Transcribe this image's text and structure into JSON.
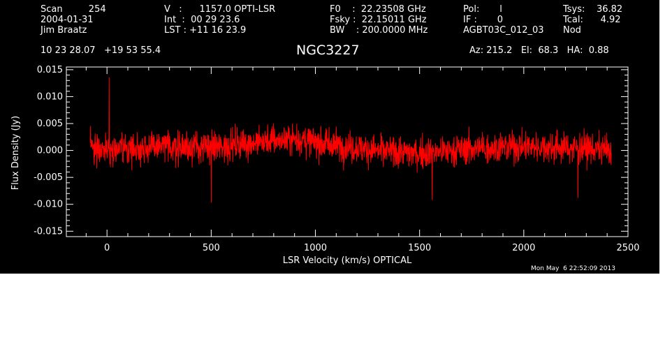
{
  "header": {
    "col1": [
      "Scan         254",
      "2004-01-31",
      "Jim Braatz"
    ],
    "col2": [
      "V   :      1157.0 OPTI-LSR",
      "Int  :  00 29 23.6",
      "LST : +11 16 23.9"
    ],
    "col3": [
      "F0    :  22.23508 GHz",
      "Fsky :  22.15011 GHz",
      "BW    : 200.0000 MHz"
    ],
    "col4": [
      "Pol:       l",
      "IF :       0",
      "AGBT03C_012_03"
    ],
    "col5": [
      "Tsys:    36.82",
      "Tcal:      4.92",
      "Nod"
    ],
    "coords": "10 23 28.07   +19 53 55.4",
    "source": "NGC3227",
    "azel": "Az: 215.2   El:  68.3   HA:  0.88"
  },
  "timestamp": "Mon May  6 22:52:09 2013",
  "colors": {
    "background": "#000000",
    "axes": "#ffffff",
    "trace": "#ff0000"
  },
  "chart_data": {
    "type": "line",
    "title": "NGC3227",
    "xlabel": "LSR Velocity (km/s) OPTICAL",
    "ylabel": "Flux Density (Jy)",
    "xlim": [
      -195,
      2500
    ],
    "ylim": [
      -0.016,
      0.0155
    ],
    "xticks": [
      0,
      500,
      1000,
      1500,
      2000,
      2500
    ],
    "xtick_labels": [
      "0",
      "500",
      "1000",
      "1500",
      "2000",
      "2500"
    ],
    "yticks": [
      0.015,
      0.01,
      0.005,
      0.0,
      -0.005,
      -0.01,
      -0.015
    ],
    "ytick_labels": [
      "0.015",
      "0.010",
      "0.005",
      "0.000",
      "-0.005",
      "-0.010",
      "-0.015"
    ],
    "grid": false,
    "series": [
      {
        "color": "#ff0000",
        "x_range": [
          -80,
          2420
        ],
        "envelope_x": [
          -80,
          0,
          300,
          500,
          700,
          900,
          1000,
          1300,
          1500,
          1800,
          2000,
          2300,
          2420
        ],
        "envelope_y": [
          0.0008,
          0.0002,
          0.0008,
          0.0005,
          0.0015,
          0.0022,
          0.0015,
          0.0,
          -0.0005,
          0.0005,
          0.0008,
          0.0004,
          0.0
        ],
        "noise_sigma": 0.0028,
        "notable_points": [
          [
            10,
            0.0136
          ],
          [
            500,
            -0.0097
          ],
          [
            1560,
            -0.0092
          ],
          [
            2260,
            -0.0088
          ]
        ]
      }
    ]
  }
}
